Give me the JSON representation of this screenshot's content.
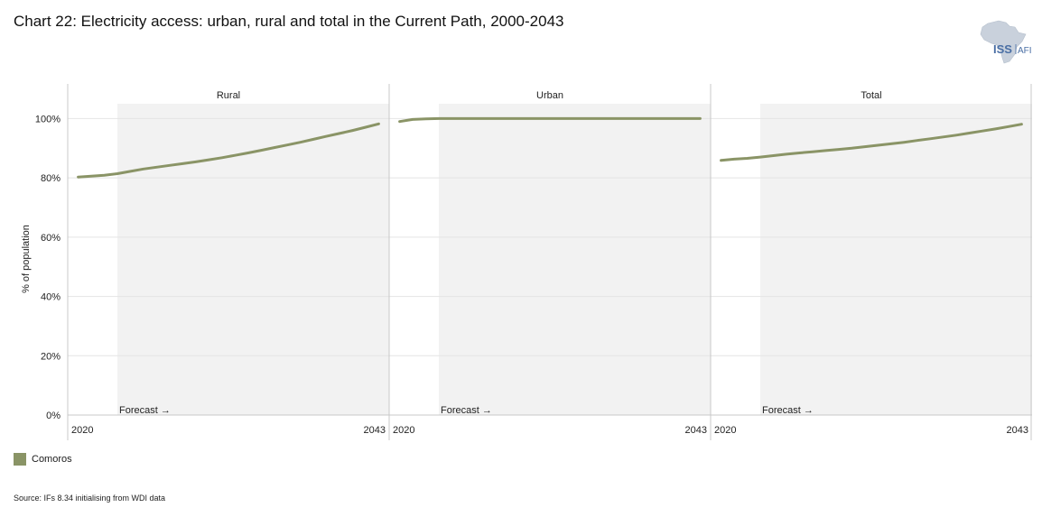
{
  "title": "Chart 22: Electricity access: urban, rural and total in the Current Path, 2000-2043",
  "logo": {
    "text_main": "ISS",
    "text_sub": "AFI",
    "color": "#4a6fa5"
  },
  "legend": {
    "label": "Comoros",
    "color": "#8a9466"
  },
  "source": "Source: IFs 8.34 initialising from WDI data",
  "colors": {
    "line": "#8a9466",
    "forecast_bg": "#f2f2f2",
    "grid": "#e4e4e4",
    "divider": "#c8c8c8"
  },
  "chart_data": {
    "type": "line",
    "ylabel": "% of population",
    "ylim": [
      0,
      1.05
    ],
    "y_ticks": [
      0,
      0.2,
      0.4,
      0.6,
      0.8,
      1.0
    ],
    "y_tick_labels": [
      "0%",
      "20%",
      "40%",
      "60%",
      "80%",
      "100%"
    ],
    "x_domain": [
      2019.2,
      2043.8
    ],
    "x_tick_labels": [
      "2020",
      "2043"
    ],
    "forecast_start": 2023,
    "forecast_label": "Forecast →",
    "grid": true,
    "legend_position": "bottom-left",
    "panels": [
      {
        "name": "Rural",
        "series": [
          {
            "name": "Comoros",
            "x": [
              2020,
              2021,
              2022,
              2023,
              2024,
              2025,
              2026,
              2027,
              2028,
              2029,
              2030,
              2031,
              2032,
              2033,
              2034,
              2035,
              2036,
              2037,
              2038,
              2039,
              2040,
              2041,
              2042,
              2043
            ],
            "values": [
              0.803,
              0.806,
              0.809,
              0.814,
              0.822,
              0.83,
              0.836,
              0.842,
              0.848,
              0.854,
              0.861,
              0.868,
              0.876,
              0.884,
              0.893,
              0.902,
              0.911,
              0.92,
              0.93,
              0.94,
              0.95,
              0.96,
              0.971,
              0.982
            ]
          }
        ]
      },
      {
        "name": "Urban",
        "series": [
          {
            "name": "Comoros",
            "x": [
              2020,
              2021,
              2022,
              2023,
              2024,
              2025,
              2026,
              2027,
              2028,
              2029,
              2030,
              2031,
              2032,
              2033,
              2034,
              2035,
              2036,
              2037,
              2038,
              2039,
              2040,
              2041,
              2042,
              2043
            ],
            "values": [
              0.99,
              0.997,
              0.999,
              1.0,
              1.0,
              1.0,
              1.0,
              1.0,
              1.0,
              1.0,
              1.0,
              1.0,
              1.0,
              1.0,
              1.0,
              1.0,
              1.0,
              1.0,
              1.0,
              1.0,
              1.0,
              1.0,
              1.0,
              1.0
            ]
          }
        ]
      },
      {
        "name": "Total",
        "series": [
          {
            "name": "Comoros",
            "x": [
              2020,
              2021,
              2022,
              2023,
              2024,
              2025,
              2026,
              2027,
              2028,
              2029,
              2030,
              2031,
              2032,
              2033,
              2034,
              2035,
              2036,
              2037,
              2038,
              2039,
              2040,
              2041,
              2042,
              2043
            ],
            "values": [
              0.859,
              0.863,
              0.866,
              0.87,
              0.875,
              0.88,
              0.884,
              0.888,
              0.892,
              0.896,
              0.9,
              0.905,
              0.91,
              0.915,
              0.92,
              0.926,
              0.932,
              0.938,
              0.944,
              0.951,
              0.958,
              0.965,
              0.973,
              0.981
            ]
          }
        ]
      }
    ]
  }
}
